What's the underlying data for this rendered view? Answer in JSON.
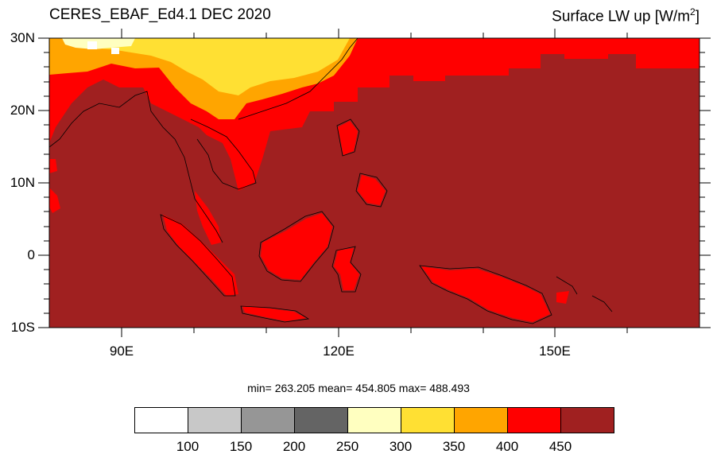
{
  "map": {
    "title_left": "CERES_EBAF_Ed4.1 DEC 2020",
    "title_right_main": "Surface LW up [W/m",
    "title_right_sup": "2",
    "title_right_end": "]",
    "lat_labels": [
      "30N",
      "20N",
      "10N",
      "0",
      "10S"
    ],
    "lon_labels": [
      "90E",
      "120E",
      "150E"
    ],
    "stats_text": "min= 263.205  mean= 454.805  max= 488.493",
    "extent": {
      "lon_min": 80,
      "lon_max": 170,
      "lat_min": -10,
      "lat_max": 30
    }
  },
  "colorbar": {
    "colors": [
      "#ffffff",
      "#c8c8c8",
      "#969696",
      "#646464",
      "#ffffc0",
      "#ffe033",
      "#ffa500",
      "#ff0000",
      "#a02020"
    ],
    "labels": [
      "100",
      "150",
      "200",
      "250",
      "300",
      "350",
      "400",
      "450"
    ]
  }
}
